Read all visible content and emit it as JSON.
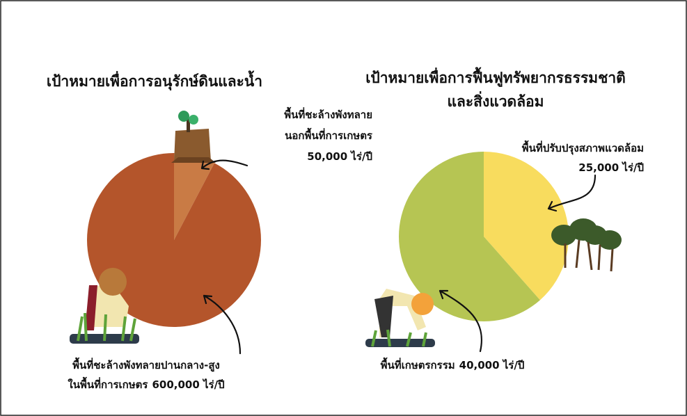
{
  "chart_data": [
    {
      "type": "pie",
      "title_lines": [
        "เป้าหมายเพื่อการอนุรักษ์ดินและน้ำ"
      ],
      "categories": [
        [
          "พื้นที่ชะล้างพังทลาย",
          "นอกพื้นที่การเกษตร"
        ],
        [
          "พื้นที่ชะล้างพังทลายปานกลาง-สูง",
          "ในพื้นที่การเกษตร"
        ]
      ],
      "values": [
        50000,
        600000
      ],
      "value_labels": [
        "50,000 ไร่/ปี",
        "600,000 ไร่/ปี"
      ],
      "colors": [
        "#c97b45",
        "#b4552b"
      ]
    },
    {
      "type": "pie",
      "title_lines": [
        "เป้าหมายเพื่อการฟื้นฟูทรัพยากรธรรมชาติ",
        "และสิ่งแวดล้อม"
      ],
      "categories": [
        [
          "พื้นที่ปรับปรุงสภาพแวดล้อม"
        ],
        [
          "พื้นที่เกษตรกรรม"
        ]
      ],
      "values": [
        25000,
        40000
      ],
      "value_labels": [
        "25,000 ไร่/ปี",
        "40,000 ไร่/ปี"
      ],
      "colors": [
        "#f8dc5e",
        "#b6c553"
      ]
    }
  ]
}
